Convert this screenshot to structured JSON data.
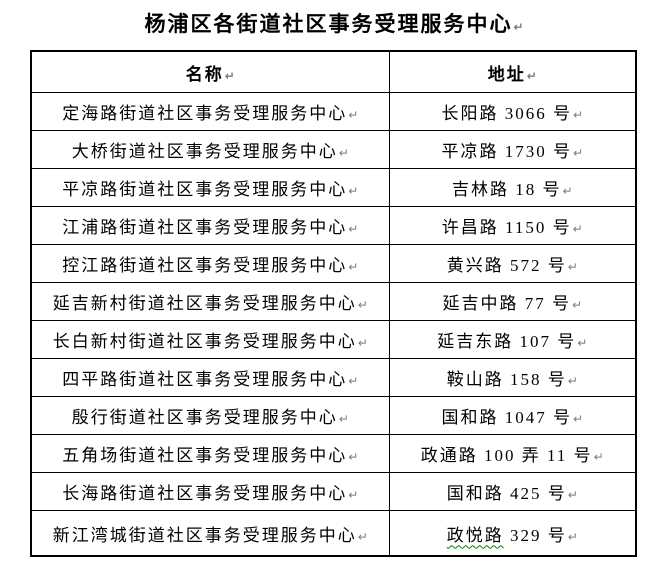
{
  "title": "杨浦区各街道社区事务受理服务中心",
  "paragraph_mark": "↵",
  "table": {
    "headers": [
      "名称",
      "地址"
    ],
    "rows": [
      {
        "name": "定海路街道社区事务受理服务中心",
        "address": "长阳路 3066 号"
      },
      {
        "name": "大桥街道社区事务受理服务中心",
        "address": "平凉路 1730 号"
      },
      {
        "name": "平凉路街道社区事务受理服务中心",
        "address": "吉林路 18 号"
      },
      {
        "name": "江浦路街道社区事务受理服务中心",
        "address": "许昌路 1150 号"
      },
      {
        "name": "控江路街道社区事务受理服务中心",
        "address": "黄兴路 572 号"
      },
      {
        "name": "延吉新村街道社区事务受理服务中心",
        "address": "延吉中路 77 号"
      },
      {
        "name": "长白新村街道社区事务受理服务中心",
        "address": "延吉东路 107 号"
      },
      {
        "name": "四平路街道社区事务受理服务中心",
        "address": "鞍山路 158 号"
      },
      {
        "name": "殷行街道社区事务受理服务中心",
        "address": "国和路 1047 号"
      },
      {
        "name": "五角场街道社区事务受理服务中心",
        "address": "政通路 100 弄 11 号"
      },
      {
        "name": "长海路街道社区事务受理服务中心",
        "address": "国和路 425 号"
      },
      {
        "name": "新江湾城街道社区事务受理服务中心",
        "address": "政悦路 329 号",
        "address_flagged": "政悦路"
      }
    ]
  },
  "colors": {
    "text": "#000000",
    "border": "#000000",
    "squiggle": "#008000",
    "background": "#ffffff"
  }
}
